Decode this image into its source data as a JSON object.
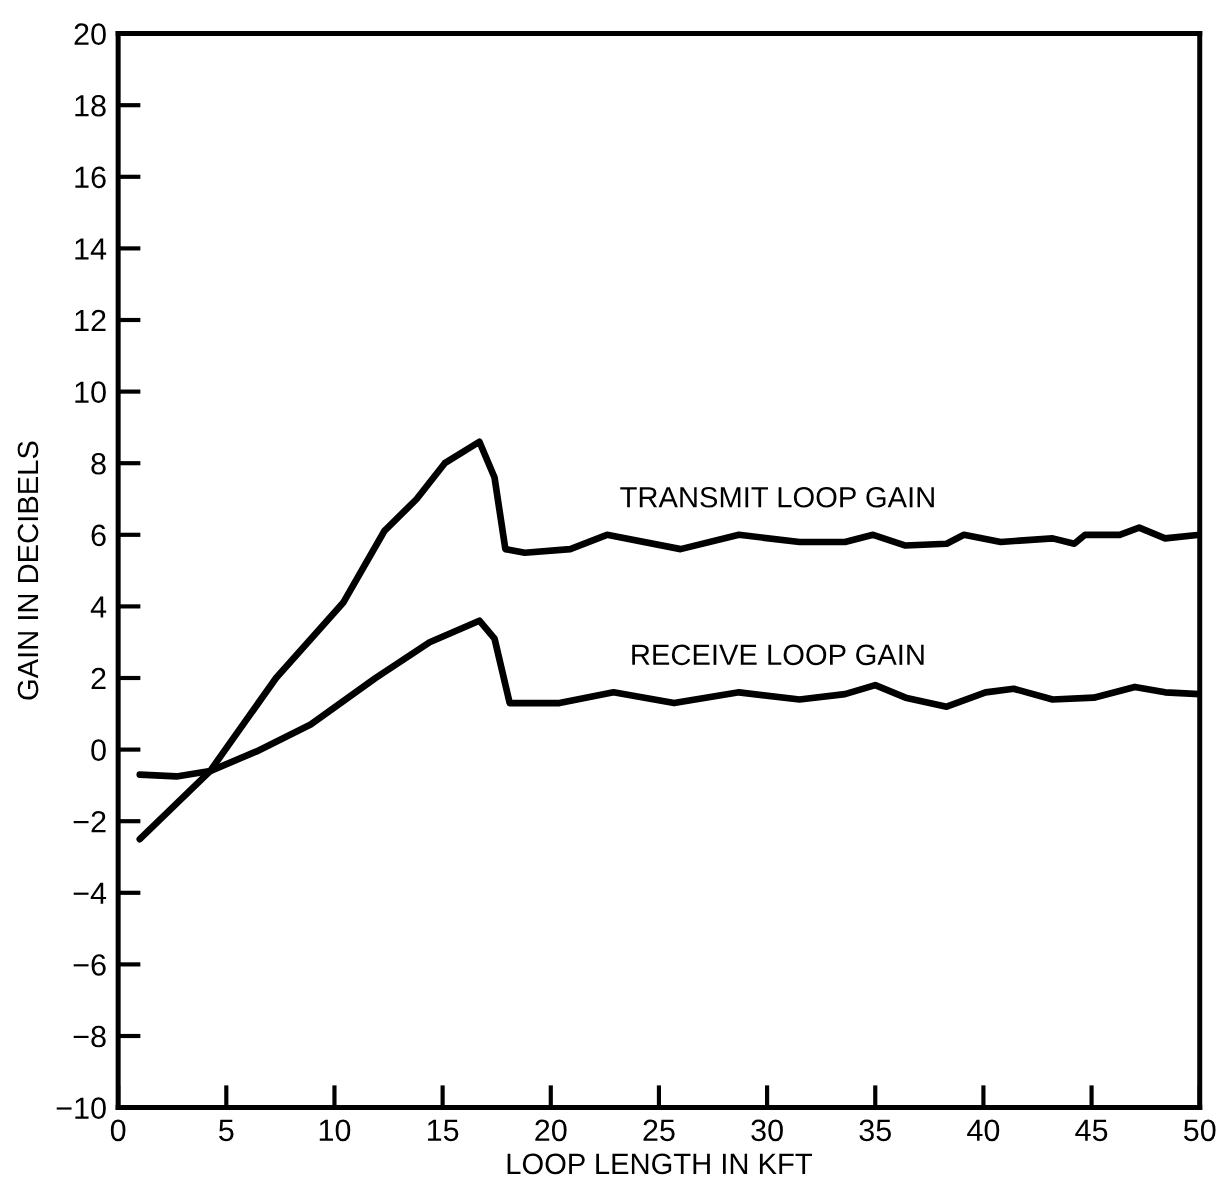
{
  "chart_data": {
    "type": "line",
    "xlabel": "LOOP LENGTH IN KFT",
    "ylabel": "GAIN IN DECIBELS",
    "xlim": [
      0,
      50
    ],
    "xticks": [
      0,
      5,
      10,
      15,
      20,
      25,
      30,
      35,
      40,
      45,
      50
    ],
    "ylim": [
      -10,
      20
    ],
    "yticks": [
      {
        "value": -10,
        "label": "−10"
      },
      {
        "value": -8,
        "label": "−8"
      },
      {
        "value": -6,
        "label": "−6"
      },
      {
        "value": -4,
        "label": "−4"
      },
      {
        "value": -2,
        "label": "−2"
      },
      0,
      2,
      4,
      6,
      8,
      10,
      12,
      14,
      16,
      18,
      20
    ],
    "grid": false,
    "marker": "none",
    "line_style": "solid",
    "series": [
      {
        "color": "#000000",
        "x": [
          1,
          4.25,
          7.3,
          10.4,
          12.3,
          13.8,
          15.1,
          16.7,
          17.4,
          17.9,
          18.8,
          20.9,
          22.6,
          26,
          28.7,
          31.5,
          33.6,
          34.9,
          36.4,
          38.3,
          39.1,
          40.8,
          43.2,
          44.2,
          44.7,
          46.3,
          47.2,
          48.4,
          50
        ],
        "values": [
          -2.5,
          -0.6,
          2.0,
          4.1,
          6.1,
          7.0,
          8.0,
          8.6,
          7.6,
          5.6,
          5.5,
          5.6,
          6.0,
          5.6,
          6.0,
          5.8,
          5.8,
          6.0,
          5.7,
          5.75,
          6.0,
          5.8,
          5.9,
          5.75,
          6.0,
          6.0,
          6.2,
          5.9,
          6.0
        ]
      },
      {
        "color": "#000000",
        "x": [
          1,
          2.7,
          4.25,
          6.4,
          8.9,
          11.9,
          14.4,
          16.7,
          17.4,
          18.1,
          20.4,
          22.9,
          25.7,
          28.7,
          31.5,
          33.6,
          35,
          36.4,
          38.3,
          40.1,
          41.4,
          43.2,
          45.1,
          47,
          48.4,
          50
        ],
        "values": [
          -0.7,
          -0.75,
          -0.6,
          -0.05,
          0.7,
          2.0,
          3.0,
          3.6,
          3.1,
          1.3,
          1.3,
          1.6,
          1.3,
          1.6,
          1.4,
          1.55,
          1.8,
          1.45,
          1.2,
          1.6,
          1.7,
          1.4,
          1.45,
          1.75,
          1.6,
          1.55
        ]
      }
    ],
    "annotations": [
      {
        "text": "TRANSMIT LOOP GAIN",
        "x": 30.5,
        "y": 5.9
      },
      {
        "text": "RECEIVE LOOP GAIN",
        "x": 30.5,
        "y": 1.5
      }
    ]
  }
}
